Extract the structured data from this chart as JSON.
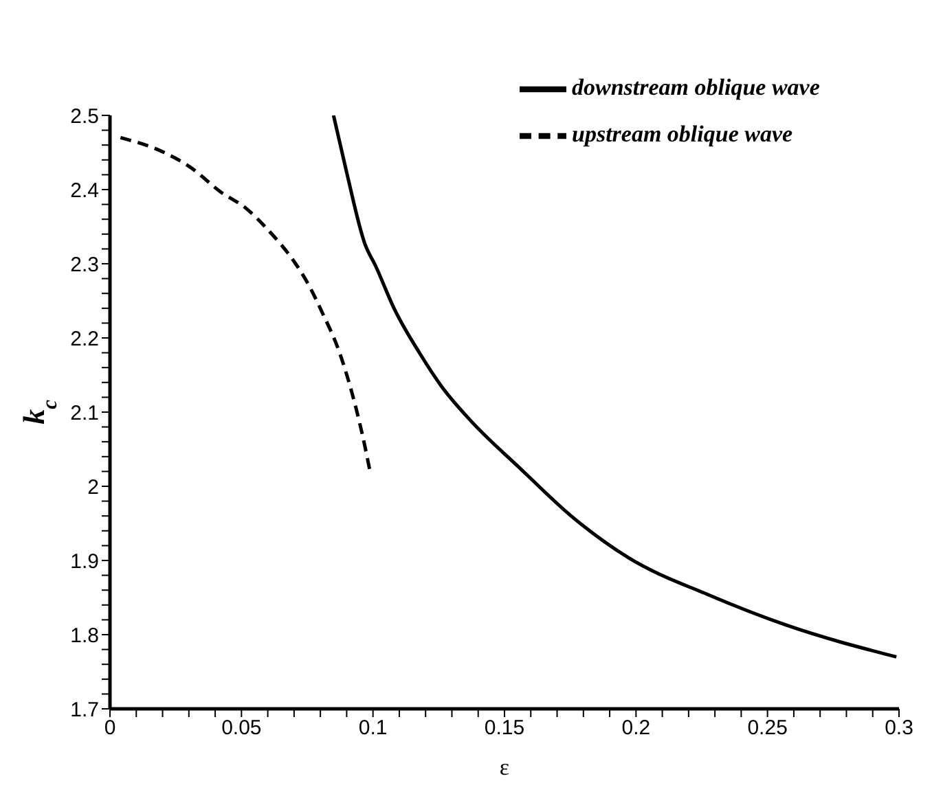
{
  "chart_data": {
    "type": "line",
    "xlabel": "ε",
    "ylabel": "k$_{c}$",
    "xlim": [
      0,
      0.3
    ],
    "xticks": [
      0,
      {
        "value": 0.01,
        "label": null
      },
      {
        "value": 0.02,
        "label": null
      },
      {
        "value": 0.03,
        "label": null
      },
      {
        "value": 0.04,
        "label": null
      },
      0.05,
      {
        "value": 0.06,
        "label": null
      },
      {
        "value": 0.07,
        "label": null
      },
      {
        "value": 0.08,
        "label": null
      },
      {
        "value": 0.09,
        "label": null
      },
      0.1,
      {
        "value": 0.11,
        "label": null
      },
      {
        "value": 0.12,
        "label": null
      },
      {
        "value": 0.13,
        "label": null
      },
      {
        "value": 0.14,
        "label": null
      },
      0.15,
      {
        "value": 0.16,
        "label": null
      },
      {
        "value": 0.17,
        "label": null
      },
      {
        "value": 0.18,
        "label": null
      },
      {
        "value": 0.19,
        "label": null
      },
      0.2,
      {
        "value": 0.21,
        "label": null
      },
      {
        "value": 0.22,
        "label": null
      },
      {
        "value": 0.23,
        "label": null
      },
      {
        "value": 0.24,
        "label": null
      },
      0.25,
      {
        "value": 0.26,
        "label": null
      },
      {
        "value": 0.27,
        "label": null
      },
      {
        "value": 0.28,
        "label": null
      },
      {
        "value": 0.29,
        "label": null
      },
      0.3
    ],
    "ylim": [
      1.7,
      2.5
    ],
    "yticks": [
      1.7,
      {
        "value": 1.72,
        "label": null
      },
      {
        "value": 1.74,
        "label": null
      },
      {
        "value": 1.76,
        "label": null
      },
      {
        "value": 1.78,
        "label": null
      },
      1.8,
      {
        "value": 1.82,
        "label": null
      },
      {
        "value": 1.84,
        "label": null
      },
      {
        "value": 1.86,
        "label": null
      },
      {
        "value": 1.88,
        "label": null
      },
      1.9,
      {
        "value": 1.92,
        "label": null
      },
      {
        "value": 1.94,
        "label": null
      },
      {
        "value": 1.96,
        "label": null
      },
      {
        "value": 1.98,
        "label": null
      },
      2,
      {
        "value": 2.02,
        "label": null
      },
      {
        "value": 2.04,
        "label": null
      },
      {
        "value": 2.06,
        "label": null
      },
      {
        "value": 2.08,
        "label": null
      },
      2.1,
      {
        "value": 2.12,
        "label": null
      },
      {
        "value": 2.14,
        "label": null
      },
      {
        "value": 2.16,
        "label": null
      },
      {
        "value": 2.18,
        "label": null
      },
      2.2,
      {
        "value": 2.22,
        "label": null
      },
      {
        "value": 2.24,
        "label": null
      },
      {
        "value": 2.26,
        "label": null
      },
      {
        "value": 2.28,
        "label": null
      },
      2.3,
      {
        "value": 2.32,
        "label": null
      },
      {
        "value": 2.34,
        "label": null
      },
      {
        "value": 2.36,
        "label": null
      },
      {
        "value": 2.38,
        "label": null
      },
      2.4,
      {
        "value": 2.42,
        "label": null
      },
      {
        "value": 2.44,
        "label": null
      },
      {
        "value": 2.46,
        "label": null
      },
      {
        "value": 2.48,
        "label": null
      },
      2.5
    ],
    "grid": false,
    "legend": "top right",
    "marker": "none",
    "series": [
      {
        "name": "upstream oblique wave",
        "color": "#000000",
        "line_style": "dashed",
        "x": [
          0.004,
          0.02,
          0.031,
          0.042,
          0.052,
          0.06,
          0.07,
          0.075,
          0.081,
          0.087,
          0.092,
          0.096,
          0.099
        ],
        "values": [
          2.47,
          2.451,
          2.429,
          2.397,
          2.374,
          2.346,
          2.303,
          2.275,
          2.232,
          2.183,
          2.126,
          2.069,
          2.018
        ]
      },
      {
        "name": "downstream oblique wave",
        "color": "#000000",
        "line_style": "solid",
        "x": [
          0.085,
          0.09,
          0.097,
          0.101,
          0.108,
          0.118,
          0.126,
          0.137,
          0.156,
          0.175,
          0.197,
          0.228,
          0.257,
          0.299
        ],
        "values": [
          2.5,
          2.423,
          2.326,
          2.297,
          2.24,
          2.178,
          2.135,
          2.089,
          2.024,
          1.961,
          1.904,
          1.853,
          1.813,
          1.77
        ]
      }
    ]
  }
}
